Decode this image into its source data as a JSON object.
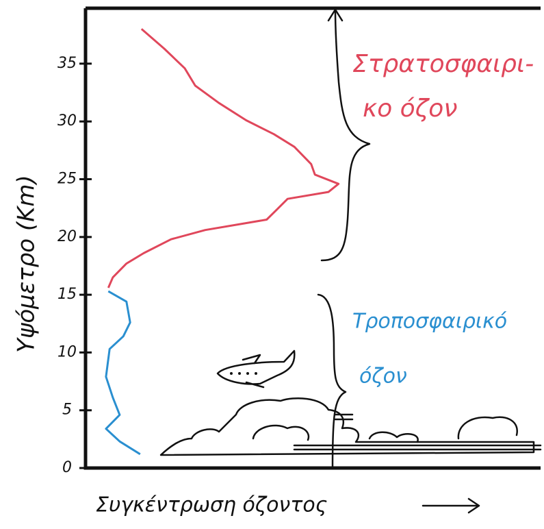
{
  "chart_data": {
    "type": "line",
    "y_label": "Υψόμετρο (Km)",
    "x_label": "Συγκέντρωση όζοντος",
    "xlim": [
      0,
      100
    ],
    "ylim": [
      0,
      39.8
    ],
    "yticks": [
      0,
      5,
      10,
      15,
      20,
      25,
      30,
      35
    ],
    "series": [
      {
        "label": [
          "Στρατοσφαιρι-",
          "κο όζον"
        ],
        "color": "#e0475b",
        "x": [
          12.3,
          17.3,
          21.8,
          24.1,
          29.3,
          35.3,
          41.4,
          45.9,
          49.6,
          50.4,
          55.6,
          53.4,
          44.4,
          42.1,
          39.8,
          26.3,
          18.8,
          12.8,
          9.0,
          6.0,
          5.0
        ],
        "values": [
          38.0,
          36.3,
          34.6,
          33.1,
          31.6,
          30.1,
          28.9,
          27.8,
          26.3,
          25.4,
          24.6,
          23.9,
          23.3,
          22.4,
          21.5,
          20.6,
          19.8,
          18.6,
          17.7,
          16.5,
          15.6
        ]
      },
      {
        "label": [
          "Τροποσφαιρικό",
          "όζον"
        ],
        "color": "#2a8fd0",
        "x": [
          5.0,
          9.0,
          9.8,
          8.3,
          5.3,
          4.5,
          6.0,
          7.5,
          4.5,
          7.5,
          12.0
        ],
        "values": [
          15.3,
          14.4,
          12.6,
          11.4,
          10.3,
          7.9,
          6.1,
          4.6,
          3.4,
          2.3,
          1.2
        ]
      }
    ]
  }
}
